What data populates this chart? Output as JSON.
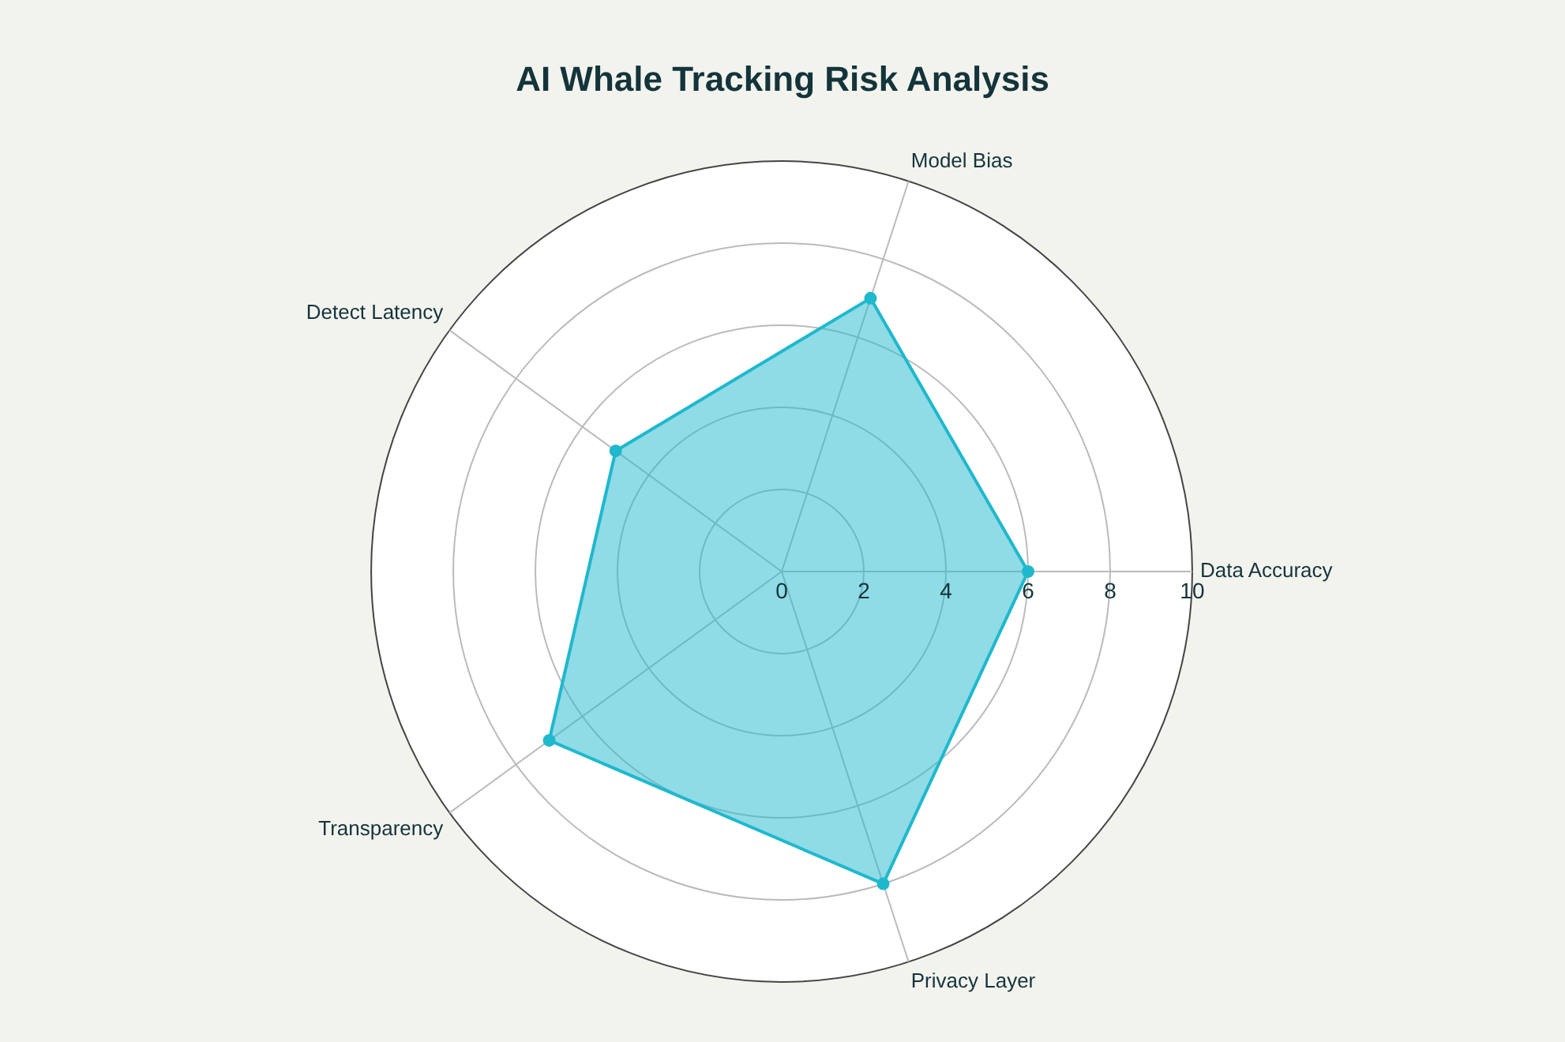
{
  "chart_data": {
    "type": "radar",
    "title": "AI Whale Tracking Risk Analysis",
    "categories": [
      "Model Bias",
      "Data Accuracy",
      "Privacy Layer",
      "Transparency",
      "Detect Latency"
    ],
    "series": [
      {
        "color": "#1fb8cd",
        "values": [
          7,
          6,
          8,
          7,
          5
        ]
      }
    ],
    "ylim": [
      0,
      10
    ],
    "yticks": [
      0,
      2,
      4,
      6,
      8,
      10
    ],
    "grid": true,
    "marker": "circle",
    "legend": false
  }
}
